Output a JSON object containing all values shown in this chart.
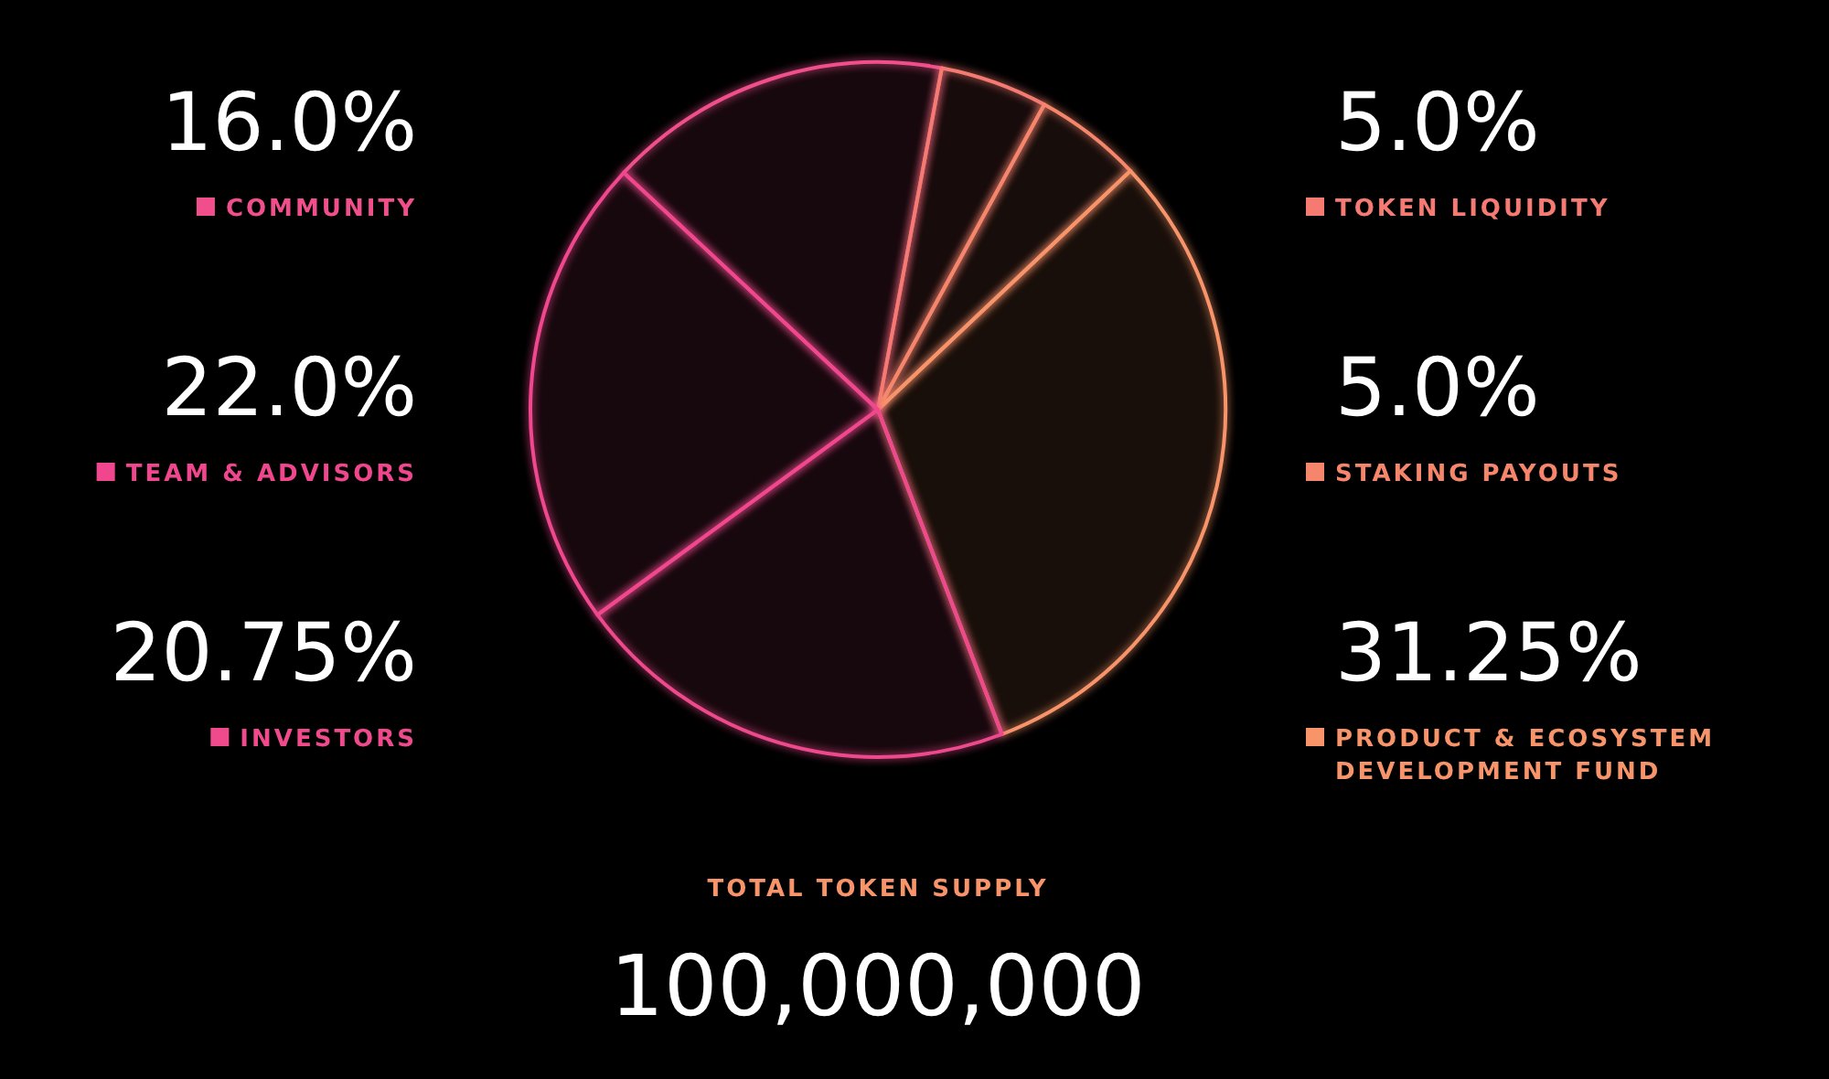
{
  "chart_data": {
    "type": "pie",
    "categories": [
      "COMMUNITY",
      "TOKEN LIQUIDITY",
      "STAKING PAYOUTS",
      "PRODUCT & ECOSYSTEM DEVELOPMENT FUND",
      "INVESTORS",
      "TEAM & ADVISORS"
    ],
    "values": [
      16.0,
      5.0,
      5.0,
      31.25,
      20.75,
      22.0
    ],
    "value_labels": [
      "16.0%",
      "5.0%",
      "5.0%",
      "31.25%",
      "20.75%",
      "22.0%"
    ],
    "colors": [
      "#f04f8c",
      "#f47a72",
      "#f5866c",
      "#f8946a",
      "#ee4a8c",
      "#f0468e"
    ],
    "legend": "right",
    "annotations": [
      "TOTAL TOKEN SUPPLY",
      "100,000,000"
    ]
  }
}
